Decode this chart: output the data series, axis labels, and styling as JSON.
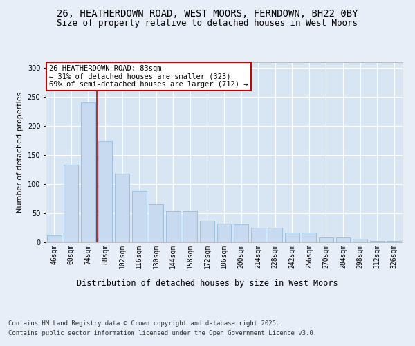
{
  "title_line1": "26, HEATHERDOWN ROAD, WEST MOORS, FERNDOWN, BH22 0BY",
  "title_line2": "Size of property relative to detached houses in West Moors",
  "xlabel": "Distribution of detached houses by size in West Moors",
  "ylabel": "Number of detached properties",
  "categories": [
    "46sqm",
    "60sqm",
    "74sqm",
    "88sqm",
    "102sqm",
    "116sqm",
    "130sqm",
    "144sqm",
    "158sqm",
    "172sqm",
    "186sqm",
    "200sqm",
    "214sqm",
    "228sqm",
    "242sqm",
    "256sqm",
    "270sqm",
    "284sqm",
    "298sqm",
    "312sqm",
    "326sqm"
  ],
  "values": [
    12,
    133,
    241,
    174,
    118,
    88,
    66,
    54,
    54,
    37,
    32,
    31,
    25,
    25,
    17,
    17,
    8,
    8,
    6,
    2,
    2
  ],
  "bar_color": "#c8daf0",
  "bar_edge_color": "#8ab4d8",
  "vline_x": 2.5,
  "vline_color": "#cc0000",
  "annotation_title": "26 HEATHERDOWN ROAD: 83sqm",
  "annotation_line2": "← 31% of detached houses are smaller (323)",
  "annotation_line3": "69% of semi-detached houses are larger (712) →",
  "annotation_box_color": "#ffffff",
  "annotation_border_color": "#cc0000",
  "footer_line1": "Contains HM Land Registry data © Crown copyright and database right 2025.",
  "footer_line2": "Contains public sector information licensed under the Open Government Licence v3.0.",
  "bg_color": "#e8eef8",
  "plot_bg_color": "#d8e6f4",
  "grid_color": "#ffffff",
  "ylim": [
    0,
    310
  ],
  "title_fontsize": 10,
  "subtitle_fontsize": 9,
  "tick_fontsize": 7,
  "ylabel_fontsize": 8,
  "xlabel_fontsize": 8.5,
  "footer_fontsize": 6.5,
  "ann_fontsize": 7.5
}
